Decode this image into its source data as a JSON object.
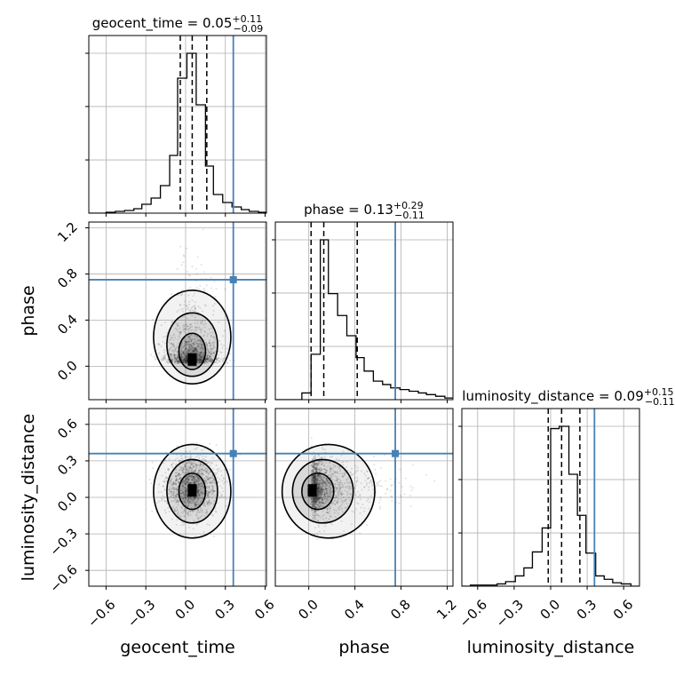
{
  "chart_data": {
    "type": "corner",
    "parameters": [
      "geocent_time",
      "phase",
      "luminosity_distance"
    ],
    "truths": [
      0.36,
      0.75,
      0.36
    ],
    "truth_color": "#4682b4",
    "hist_color": "#000000",
    "grid": true,
    "titles": [
      {
        "text": "geocent_time = 0.05",
        "sup": "+0.11",
        "sub": "−0.09"
      },
      {
        "text": "phase = 0.13",
        "sup": "+0.29",
        "sub": "−0.11"
      },
      {
        "text": "luminosity_distance = 0.09",
        "sup": "+0.15",
        "sub": "−0.11"
      }
    ],
    "ranges": [
      [
        -0.73,
        0.61
      ],
      [
        -0.29,
        1.25
      ],
      [
        -0.73,
        0.73
      ]
    ],
    "ticks": [
      {
        "values": [
          -0.6,
          -0.3,
          0.0,
          0.3,
          0.6
        ],
        "labels": [
          "−0.6",
          "−0.3",
          "0.0",
          "0.3",
          "0.6"
        ]
      },
      {
        "values": [
          0.0,
          0.4,
          0.8,
          1.2
        ],
        "labels": [
          "0.0",
          "0.4",
          "0.8",
          "1.2"
        ]
      },
      {
        "values": [
          -0.6,
          -0.3,
          0.0,
          0.3,
          0.6
        ],
        "labels": [
          "−0.6",
          "−0.3",
          "0.0",
          "0.3",
          "0.6"
        ]
      }
    ],
    "quantiles": [
      [
        -0.04,
        0.05,
        0.16
      ],
      [
        0.02,
        0.13,
        0.42
      ],
      [
        -0.02,
        0.09,
        0.24
      ]
    ],
    "histograms": [
      {
        "bin_edges": [
          -0.73,
          -0.66,
          -0.6,
          -0.53,
          -0.46,
          -0.39,
          -0.33,
          -0.26,
          -0.19,
          -0.12,
          -0.06,
          0.01,
          0.08,
          0.15,
          0.21,
          0.28,
          0.35,
          0.42,
          0.48,
          0.55,
          0.61
        ],
        "counts": [
          0,
          0,
          1,
          2,
          3,
          5,
          10,
          17,
          31,
          65,
          152,
          180,
          122,
          53,
          21,
          12,
          7,
          4,
          2,
          1
        ]
      },
      {
        "bin_edges": [
          -0.29,
          -0.21,
          -0.14,
          -0.06,
          0.02,
          0.1,
          0.17,
          0.25,
          0.33,
          0.41,
          0.48,
          0.56,
          0.64,
          0.71,
          0.79,
          0.87,
          0.95,
          1.02,
          1.1,
          1.18,
          1.25
        ],
        "counts": [
          0,
          0,
          0,
          4,
          27,
          95,
          63,
          50,
          38,
          25,
          17,
          11,
          9,
          7,
          6,
          5,
          4,
          3,
          2,
          1
        ]
      },
      {
        "bin_edges": [
          -0.73,
          -0.66,
          -0.58,
          -0.51,
          -0.44,
          -0.37,
          -0.29,
          -0.22,
          -0.15,
          -0.07,
          0.0,
          0.07,
          0.15,
          0.22,
          0.29,
          0.37,
          0.44,
          0.51,
          0.58,
          0.66,
          0.73
        ],
        "counts": [
          0,
          1,
          1,
          1,
          2,
          4,
          9,
          16,
          30,
          51,
          138,
          140,
          98,
          62,
          29,
          9,
          6,
          3,
          2,
          0
        ]
      }
    ],
    "posterior": {
      "mean": [
        0.05,
        0.13,
        0.09
      ],
      "std": [
        0.1,
        0.17,
        0.12
      ]
    },
    "axis_labels": [
      "geocent_time",
      "phase",
      "luminosity_distance"
    ]
  }
}
